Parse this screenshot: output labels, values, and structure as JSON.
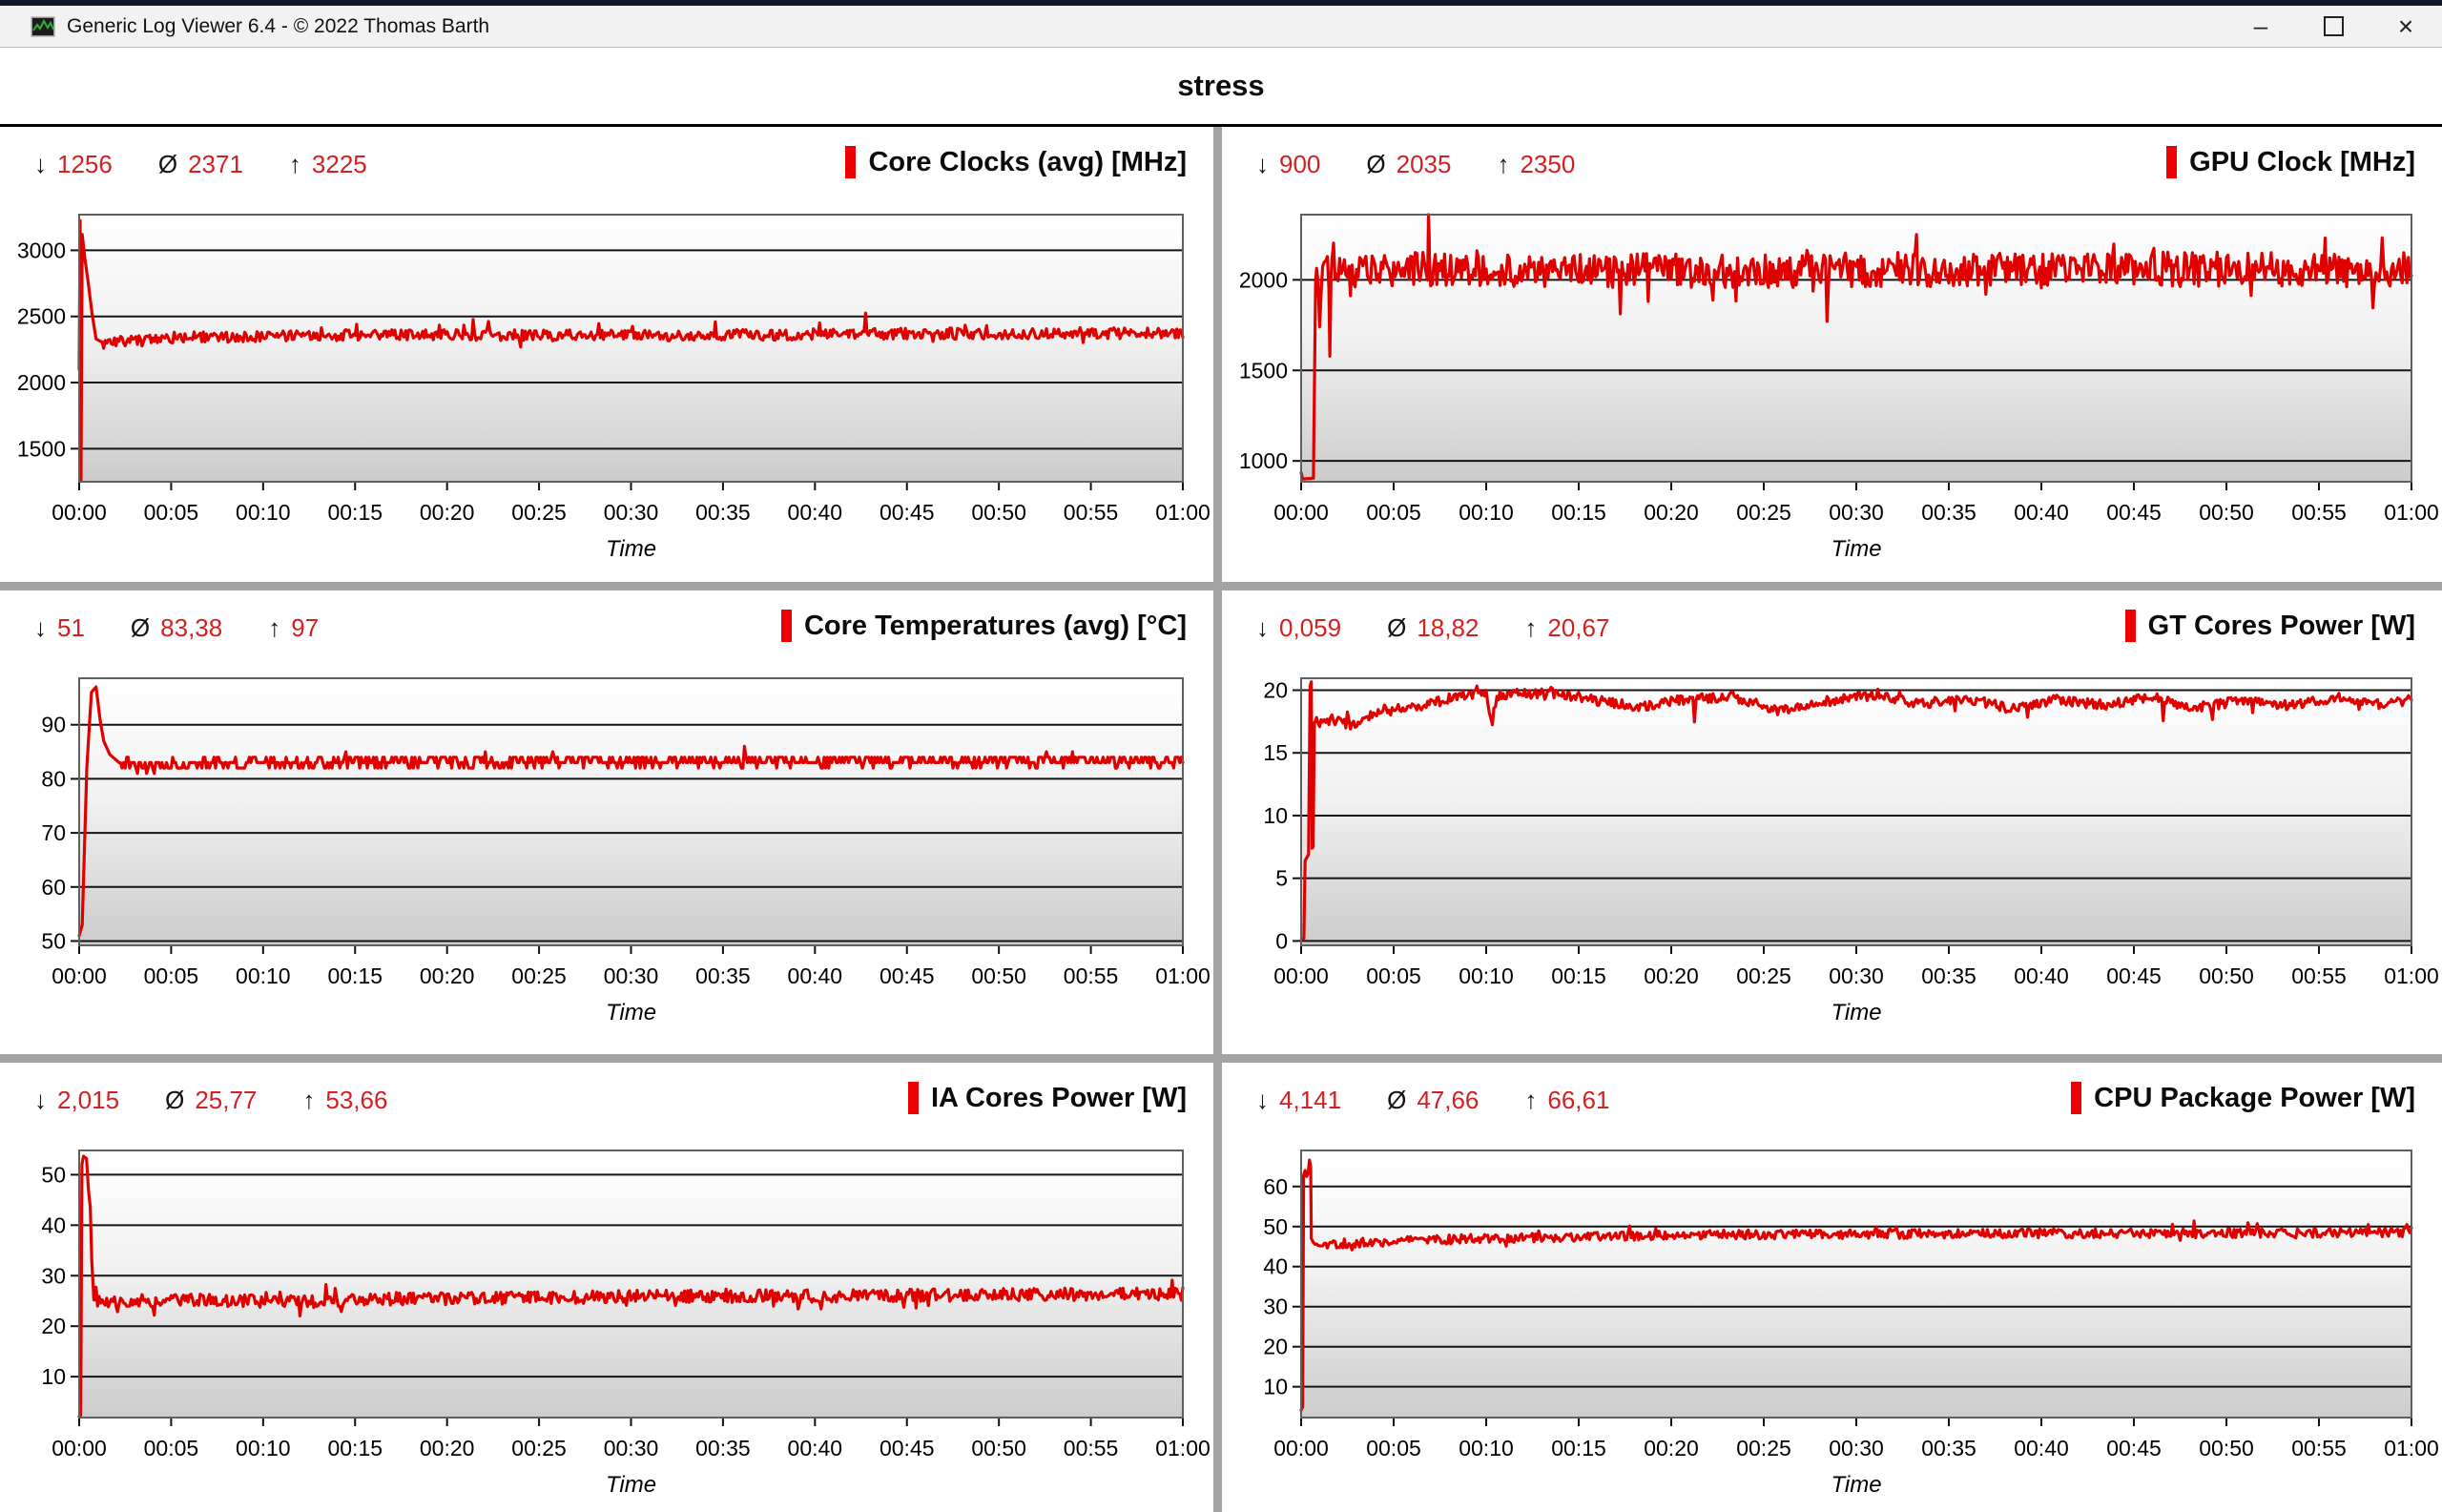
{
  "window": {
    "title": "Generic Log Viewer 6.4 - © 2022 Thomas Barth",
    "controls": {
      "minimize": "–",
      "maximize": "",
      "close": "×"
    },
    "icon": "log-graph-icon"
  },
  "header": {
    "title": "stress"
  },
  "stat_symbols": {
    "min": "↓",
    "avg": "Ø",
    "max": "↑"
  },
  "colors": {
    "line_red": "#e10000",
    "legend_red": "#ee0000",
    "stat_value_red": "#d32020",
    "divider_gray": "#a3a3a3",
    "grid_black": "#141414",
    "plot_border": "#5f5f5f",
    "plot_bg_top": "#ffffff",
    "plot_bg_bottom": "#cccccc"
  },
  "x_axis": {
    "label": "Time",
    "ticks": [
      "00:00",
      "00:05",
      "00:10",
      "00:15",
      "00:20",
      "00:25",
      "00:30",
      "00:35",
      "00:40",
      "00:45",
      "00:50",
      "00:55",
      "01:00"
    ],
    "range_seconds": [
      0,
      3600
    ]
  },
  "chart_data": [
    {
      "type": "line",
      "title": "Core Clocks (avg) [MHz]",
      "stats": {
        "min": "1256",
        "avg": "2371",
        "max": "3225"
      },
      "legend_pos": "top-right",
      "grid": true,
      "y_ticks": [
        3000,
        2500,
        2000,
        1500
      ],
      "y_range": {
        "min": 1250,
        "max": 3270
      },
      "series": {
        "anchors": [
          [
            0,
            2100
          ],
          [
            3,
            3225
          ],
          [
            6,
            1256
          ],
          [
            10,
            3120
          ],
          [
            18,
            2950
          ],
          [
            30,
            2750
          ],
          [
            42,
            2520
          ],
          [
            55,
            2330
          ],
          [
            80,
            2300
          ],
          [
            300,
            2340
          ],
          [
            900,
            2360
          ],
          [
            1800,
            2355
          ],
          [
            2700,
            2370
          ],
          [
            3600,
            2375
          ]
        ],
        "noise": {
          "start": 80,
          "amp": 42,
          "spike_p": 0.025,
          "spike_amp": 130,
          "dip_p": 0.02,
          "dip_amp": -70
        }
      }
    },
    {
      "type": "line",
      "title": "GPU Clock [MHz]",
      "stats": {
        "min": "900",
        "avg": "2035",
        "max": "2350"
      },
      "legend_pos": "top-right",
      "grid": true,
      "y_ticks": [
        2000,
        1500,
        1000
      ],
      "y_range": {
        "min": 885,
        "max": 2360
      },
      "series": {
        "anchors": [
          [
            0,
            935
          ],
          [
            5,
            900
          ],
          [
            40,
            905
          ],
          [
            47,
            1990
          ],
          [
            90,
            2040
          ],
          [
            93,
            1660
          ],
          [
            97,
            2040
          ],
          [
            410,
            2060
          ],
          [
            413,
            2350
          ],
          [
            416,
            2060
          ],
          [
            1200,
            2050
          ],
          [
            2400,
            2060
          ],
          [
            3600,
            2055
          ]
        ],
        "noise": {
          "start": 50,
          "amp": 95,
          "spike_p": 0.02,
          "spike_amp": 150,
          "dip_p": 0.025,
          "dip_amp": -200
        }
      }
    },
    {
      "type": "line",
      "title": "Core Temperatures (avg) [°C]",
      "stats": {
        "min": "51",
        "avg": "83,38",
        "max": "97"
      },
      "legend_pos": "top-right",
      "grid": true,
      "y_ticks": [
        90,
        80,
        70,
        60,
        50
      ],
      "y_range": {
        "min": 49.2,
        "max": 98.6
      },
      "series": {
        "anchors": [
          [
            0,
            51
          ],
          [
            10,
            53
          ],
          [
            25,
            82
          ],
          [
            40,
            96
          ],
          [
            55,
            97
          ],
          [
            68,
            91
          ],
          [
            80,
            87
          ],
          [
            100,
            84.5
          ],
          [
            130,
            83
          ],
          [
            200,
            82.3
          ],
          [
            400,
            82.8
          ],
          [
            1200,
            83.2
          ],
          [
            2400,
            83.3
          ],
          [
            3600,
            83.4
          ]
        ],
        "noise": {
          "start": 140,
          "amp": 1.1,
          "spike_p": 0.02,
          "spike_amp": 2.6,
          "dip_p": 0,
          "dip_amp": 0,
          "quant": 1
        }
      }
    },
    {
      "type": "line",
      "title": "GT Cores Power [W]",
      "stats": {
        "min": "0,059",
        "avg": "18,82",
        "max": "20,67"
      },
      "legend_pos": "top-right",
      "grid": true,
      "y_ticks": [
        20,
        15,
        10,
        5,
        0
      ],
      "y_range": {
        "min": -0.35,
        "max": 20.95
      },
      "series": {
        "anchors": [
          [
            0,
            0.06
          ],
          [
            9,
            0.2
          ],
          [
            13,
            6.4
          ],
          [
            24,
            6.9
          ],
          [
            29,
            20.3
          ],
          [
            33,
            20.67
          ],
          [
            36,
            7.4
          ],
          [
            39,
            7.5
          ],
          [
            43,
            17.4
          ],
          [
            100,
            17.7
          ],
          [
            170,
            17.2
          ],
          [
            230,
            18.1
          ],
          [
            300,
            18.4
          ],
          [
            420,
            18.9
          ],
          [
            520,
            19.6
          ],
          [
            600,
            19.9
          ],
          [
            615,
            17.8
          ],
          [
            640,
            19.6
          ],
          [
            800,
            19.8
          ],
          [
            950,
            19.2
          ],
          [
            1100,
            18.6
          ],
          [
            1250,
            19.3
          ],
          [
            1400,
            19.5
          ],
          [
            1550,
            18.3
          ],
          [
            1700,
            19.1
          ],
          [
            1850,
            19.6
          ],
          [
            2000,
            18.9
          ],
          [
            2150,
            19.4
          ],
          [
            2300,
            18.5
          ],
          [
            2450,
            19.3
          ],
          [
            2600,
            18.8
          ],
          [
            2750,
            19.5
          ],
          [
            2900,
            18.6
          ],
          [
            3050,
            19.2
          ],
          [
            3200,
            18.8
          ],
          [
            3350,
            19.4
          ],
          [
            3500,
            18.9
          ],
          [
            3600,
            19.2
          ]
        ],
        "noise": {
          "start": 45,
          "amp": 0.4,
          "spike_p": 0.008,
          "spike_amp": 0.8,
          "dip_p": 0.012,
          "dip_amp": -1.6
        }
      }
    },
    {
      "type": "line",
      "title": "IA Cores Power [W]",
      "stats": {
        "min": "2,015",
        "avg": "25,77",
        "max": "53,66"
      },
      "legend_pos": "top-right",
      "grid": true,
      "y_ticks": [
        50,
        40,
        30,
        20,
        10
      ],
      "y_range": {
        "min": 1.9,
        "max": 54.8
      },
      "series": {
        "anchors": [
          [
            0,
            2.1
          ],
          [
            5,
            2.3
          ],
          [
            9,
            52
          ],
          [
            14,
            53.66
          ],
          [
            24,
            53.2
          ],
          [
            31,
            46.5
          ],
          [
            36,
            43.8
          ],
          [
            41,
            33
          ],
          [
            48,
            25.2
          ],
          [
            90,
            24.6
          ],
          [
            200,
            25
          ],
          [
            420,
            25.2
          ],
          [
            700,
            24.8
          ],
          [
            1000,
            25.4
          ],
          [
            1400,
            25.6
          ],
          [
            1900,
            25.9
          ],
          [
            2400,
            26
          ],
          [
            2900,
            26.2
          ],
          [
            3600,
            26.4
          ]
        ],
        "noise": {
          "start": 55,
          "amp": 1.25,
          "spike_p": 0.02,
          "spike_amp": 2.2,
          "dip_p": 0.012,
          "dip_amp": -2.4
        }
      }
    },
    {
      "type": "line",
      "title": "CPU Package Power [W]",
      "stats": {
        "min": "4,141",
        "avg": "47,66",
        "max": "66,61"
      },
      "legend_pos": "top-right",
      "grid": true,
      "y_ticks": [
        60,
        50,
        40,
        30,
        20,
        10
      ],
      "y_range": {
        "min": 2.3,
        "max": 69.0
      },
      "series": {
        "anchors": [
          [
            0,
            4.14
          ],
          [
            5,
            5
          ],
          [
            8,
            62.8
          ],
          [
            13,
            64
          ],
          [
            18,
            62.5
          ],
          [
            23,
            63.5
          ],
          [
            27,
            66.6
          ],
          [
            31,
            65
          ],
          [
            33,
            47
          ],
          [
            45,
            45.3
          ],
          [
            100,
            45.6
          ],
          [
            200,
            46
          ],
          [
            400,
            46.6
          ],
          [
            700,
            47.2
          ],
          [
            1000,
            47.6
          ],
          [
            1400,
            48
          ],
          [
            1900,
            48.1
          ],
          [
            2400,
            48.3
          ],
          [
            2900,
            48.3
          ],
          [
            3600,
            48.6
          ]
        ],
        "noise": {
          "start": 45,
          "amp": 1.15,
          "spike_p": 0.02,
          "spike_amp": 2.4,
          "dip_p": 0.012,
          "dip_amp": -2.2
        }
      }
    }
  ]
}
